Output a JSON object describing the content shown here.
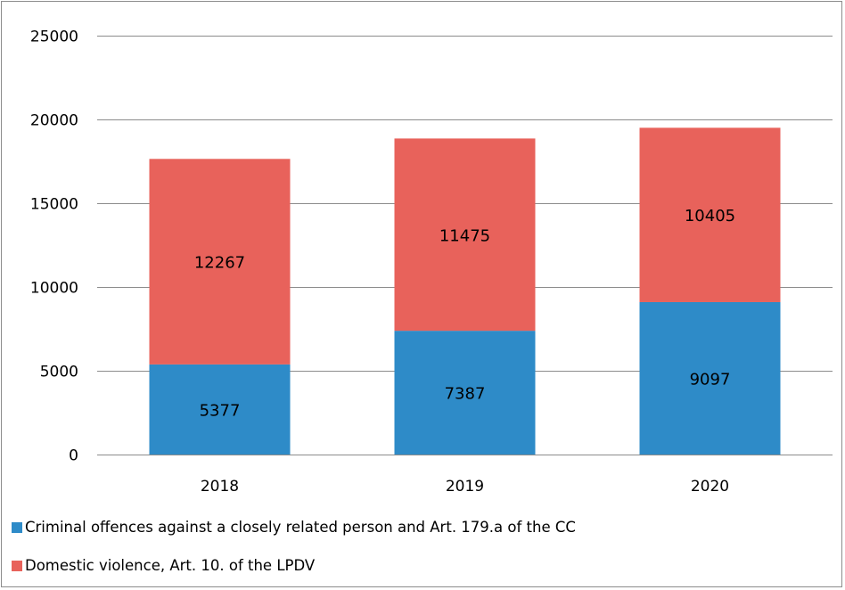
{
  "chart_data": {
    "type": "bar",
    "stacked": true,
    "title": "",
    "xlabel": "",
    "ylabel": "",
    "categories": [
      "2018",
      "2019",
      "2020"
    ],
    "ylim": [
      0,
      25000
    ],
    "yticks": [
      0,
      5000,
      10000,
      15000,
      20000,
      25000
    ],
    "grid": true,
    "legend_position": "bottom",
    "series": [
      {
        "name": "Criminal offences against a closely related person and Art. 179.a of the CC",
        "values": [
          5377,
          7387,
          9097
        ],
        "color": "#2e8bc8"
      },
      {
        "name": "Domestic violence, Art. 10. of the LPDV",
        "values": [
          12267,
          11475,
          10405
        ],
        "color": "#e8625b"
      }
    ]
  }
}
